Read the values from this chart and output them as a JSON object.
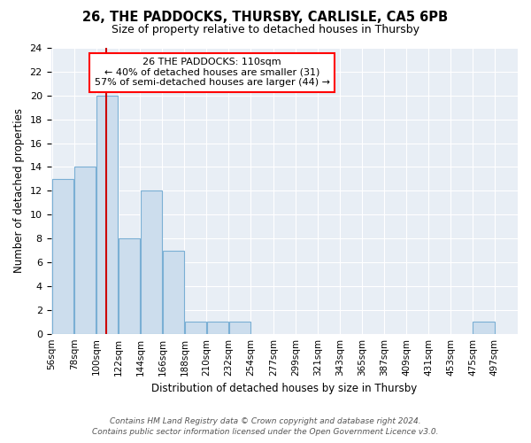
{
  "title": "26, THE PADDOCKS, THURSBY, CARLISLE, CA5 6PB",
  "subtitle": "Size of property relative to detached houses in Thursby",
  "xlabel": "Distribution of detached houses by size in Thursby",
  "ylabel": "Number of detached properties",
  "bins": [
    56,
    78,
    100,
    122,
    144,
    166,
    188,
    210,
    232,
    254,
    277,
    299,
    321,
    343,
    365,
    387,
    409,
    431,
    453,
    475,
    497
  ],
  "bin_labels": [
    "56sqm",
    "78sqm",
    "100sqm",
    "122sqm",
    "144sqm",
    "166sqm",
    "188sqm",
    "210sqm",
    "232sqm",
    "254sqm",
    "277sqm",
    "299sqm",
    "321sqm",
    "343sqm",
    "365sqm",
    "387sqm",
    "409sqm",
    "431sqm",
    "453sqm",
    "475sqm",
    "497sqm"
  ],
  "counts": [
    13,
    14,
    20,
    8,
    12,
    7,
    1,
    1,
    1,
    0,
    0,
    0,
    0,
    0,
    0,
    0,
    0,
    0,
    0,
    1,
    0
  ],
  "bar_color": "#ccdded",
  "bar_edge_color": "#7aafd4",
  "red_line_x": 110,
  "annotation_text": "26 THE PADDOCKS: 110sqm\n← 40% of detached houses are smaller (31)\n57% of semi-detached houses are larger (44) →",
  "red_line_color": "#cc0000",
  "ylim": [
    0,
    24
  ],
  "yticks": [
    0,
    2,
    4,
    6,
    8,
    10,
    12,
    14,
    16,
    18,
    20,
    22,
    24
  ],
  "footer_line1": "Contains HM Land Registry data © Crown copyright and database right 2024.",
  "footer_line2": "Contains public sector information licensed under the Open Government Licence v3.0.",
  "plot_bg_color": "#e8eef5",
  "grid_color": "#ffffff"
}
